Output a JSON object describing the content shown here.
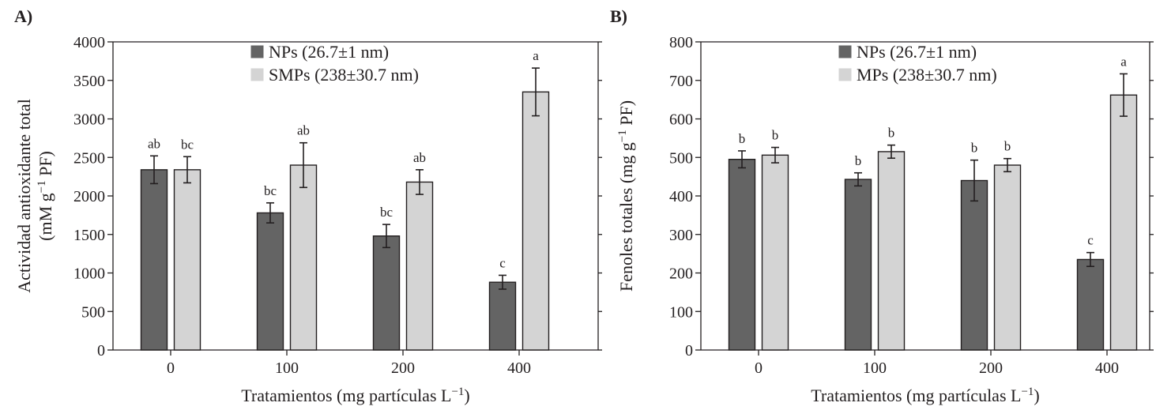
{
  "chart_data": [
    {
      "type": "bar",
      "panel_label": "A)",
      "title": "",
      "ylabel_line1": "Actividad antioxidante total",
      "ylabel_line2_pre": "(mM g",
      "ylabel_line2_sup": "−1",
      "ylabel_line2_post": " PF)",
      "xlabel_pre": "Tratamientos (mg partículas L",
      "xlabel_sup": "−1",
      "xlabel_post": ")",
      "categories": [
        "0",
        "100",
        "200",
        "400"
      ],
      "ylim": [
        0,
        4000
      ],
      "yticks": [
        0,
        500,
        1000,
        1500,
        2000,
        2500,
        3000,
        3500,
        4000
      ],
      "legend_position": "top-center",
      "series": [
        {
          "name": "NPs (26.7±1 nm)",
          "color": "#646464",
          "values": [
            2340,
            1780,
            1480,
            880
          ],
          "errors": [
            180,
            130,
            150,
            90
          ],
          "letters": [
            "ab",
            "bc",
            "bc",
            "c"
          ]
        },
        {
          "name": "SMPs (238±30.7 nm)",
          "color": "#d4d4d4",
          "values": [
            2340,
            2400,
            2180,
            3350
          ],
          "errors": [
            170,
            290,
            160,
            310
          ],
          "letters": [
            "bc",
            "ab",
            "ab",
            "a"
          ]
        }
      ]
    },
    {
      "type": "bar",
      "panel_label": "B)",
      "title": "",
      "ylabel_line1": "Fenoles totales (mg g",
      "ylabel_line1_sup": "−1",
      "ylabel_line1_post": " PF)",
      "xlabel_pre": "Tratamientos (mg partículas L",
      "xlabel_sup": "−1",
      "xlabel_post": ")",
      "categories": [
        "0",
        "100",
        "200",
        "400"
      ],
      "ylim": [
        0,
        800
      ],
      "yticks": [
        0,
        100,
        200,
        300,
        400,
        500,
        600,
        700,
        800
      ],
      "legend_position": "top-center",
      "series": [
        {
          "name": "NPs (26.7±1 nm)",
          "color": "#646464",
          "values": [
            495,
            443,
            440,
            235
          ],
          "errors": [
            22,
            17,
            53,
            18
          ],
          "letters": [
            "b",
            "b",
            "b",
            "c"
          ]
        },
        {
          "name": "MPs (238±30.7 nm)",
          "color": "#d4d4d4",
          "values": [
            506,
            515,
            480,
            662
          ],
          "errors": [
            20,
            17,
            17,
            55
          ],
          "letters": [
            "b",
            "b",
            "b",
            "a"
          ]
        }
      ]
    }
  ]
}
